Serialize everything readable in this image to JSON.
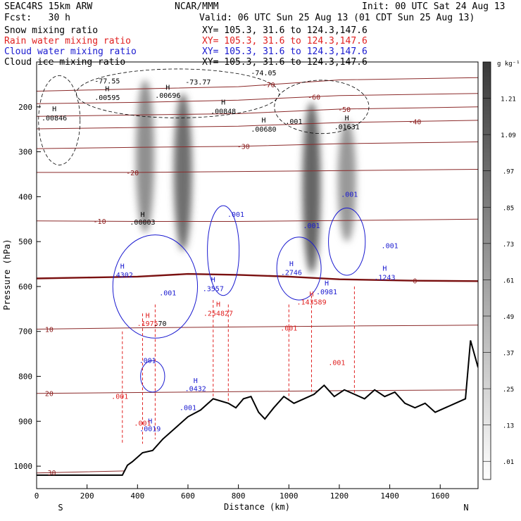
{
  "header": {
    "model": "SEAC4RS 15km ARW",
    "org": "NCAR/MMM",
    "init": "Init: 00 UTC Sat 24 Aug 13",
    "fcst": "Fcst:   30 h",
    "valid": "Valid: 06 UTC Sun 25 Aug 13 (01 CDT Sun 25 Aug 13)"
  },
  "fields": [
    {
      "label": "Snow mixing ratio",
      "xy": "XY= 105.3, 31.6 to 124.3,147.6",
      "color": "#000000"
    },
    {
      "label": "Rain water mixing ratio",
      "xy": "XY= 105.3, 31.6 to 124.3,147.6",
      "color": "#e02020"
    },
    {
      "label": "Cloud water mixing ratio",
      "xy": "XY= 105.3, 31.6 to 124.3,147.6",
      "color": "#1a1ad0"
    },
    {
      "label": "Cloud ice mixing ratio",
      "xy": "XY= 105.3, 31.6 to 124.3,147.6",
      "color": "#000000"
    }
  ],
  "chart_data": {
    "type": "heatmap",
    "title": "",
    "xlabel": "Distance (km)",
    "ylabel": "Pressure (hPa)",
    "xlim": [
      0,
      1750
    ],
    "ylim": [
      1050,
      100
    ],
    "x_ticks": [
      0,
      200,
      400,
      600,
      800,
      1000,
      1200,
      1400,
      1600
    ],
    "y_ticks": [
      200,
      300,
      400,
      500,
      600,
      700,
      800,
      900,
      1000
    ],
    "x_end_labels": {
      "left": "S",
      "right": "N"
    },
    "colorbar": {
      "unit": "g kg⁻¹",
      "ticks": [
        ".01",
        ".13",
        ".25",
        ".37",
        ".49",
        ".61",
        ".73",
        ".85",
        ".97",
        "1.09",
        "1.21"
      ]
    },
    "snow_cores": [
      {
        "x": 430,
        "p_top": 140,
        "p_bottom": 480,
        "intensity": 0.65
      },
      {
        "x": 580,
        "p_top": 170,
        "p_bottom": 520,
        "intensity": 0.85
      },
      {
        "x": 1090,
        "p_top": 190,
        "p_bottom": 570,
        "intensity": 0.9
      },
      {
        "x": 1230,
        "p_top": 230,
        "p_bottom": 500,
        "intensity": 0.6
      }
    ],
    "isotherms": [
      {
        "value": -70,
        "label": "-70",
        "label_x": 920,
        "p": [
          [
            0,
            165
          ],
          [
            400,
            160
          ],
          [
            800,
            155
          ],
          [
            1200,
            140
          ],
          [
            1750,
            135
          ]
        ]
      },
      {
        "value": -60,
        "label": "-60",
        "label_x": 1100,
        "p": [
          [
            0,
            193
          ],
          [
            400,
            190
          ],
          [
            800,
            185
          ],
          [
            1200,
            175
          ],
          [
            1750,
            170
          ]
        ]
      },
      {
        "value": -50,
        "label": "-50",
        "label_x": 1220,
        "p": [
          [
            0,
            221
          ],
          [
            400,
            218
          ],
          [
            800,
            215
          ],
          [
            1200,
            205
          ],
          [
            1750,
            200
          ]
        ]
      },
      {
        "value": -40,
        "label": "-40",
        "label_x": 1500,
        "p": [
          [
            0,
            249
          ],
          [
            400,
            246
          ],
          [
            800,
            243
          ],
          [
            1200,
            235
          ],
          [
            1750,
            230
          ]
        ]
      },
      {
        "value": -30,
        "label": "-30",
        "label_x": 820,
        "p": [
          [
            0,
            293
          ],
          [
            400,
            290
          ],
          [
            800,
            288
          ],
          [
            1200,
            282
          ],
          [
            1750,
            278
          ]
        ]
      },
      {
        "value": -20,
        "label": "-20",
        "label_x": 380,
        "p": [
          [
            0,
            346
          ],
          [
            400,
            346
          ],
          [
            800,
            344
          ],
          [
            1200,
            342
          ],
          [
            1750,
            339
          ]
        ]
      },
      {
        "value": -10,
        "label": "-10",
        "label_x": 250,
        "p": [
          [
            0,
            454
          ],
          [
            400,
            455
          ],
          [
            800,
            455
          ],
          [
            1200,
            453
          ],
          [
            1750,
            450
          ]
        ]
      },
      {
        "value": 0,
        "label": "0",
        "label_x": 1500,
        "p": [
          [
            0,
            582
          ],
          [
            200,
            580
          ],
          [
            400,
            578
          ],
          [
            600,
            572
          ],
          [
            800,
            574
          ],
          [
            1000,
            578
          ],
          [
            1200,
            584
          ],
          [
            1500,
            587
          ],
          [
            1750,
            588
          ]
        ]
      },
      {
        "value": 10,
        "label": "10",
        "label_x": 50,
        "p": [
          [
            0,
            695
          ],
          [
            400,
            692
          ],
          [
            800,
            690
          ],
          [
            1200,
            688
          ],
          [
            1750,
            686
          ]
        ]
      },
      {
        "value": 20,
        "label": "20",
        "label_x": 50,
        "p": [
          [
            0,
            838
          ],
          [
            400,
            836
          ],
          [
            800,
            834
          ],
          [
            1200,
            832
          ],
          [
            1750,
            830
          ]
        ]
      },
      {
        "value": 30,
        "label": "30",
        "label_x": 60,
        "p": [
          [
            0,
            1015
          ],
          [
            400,
            1010
          ],
          [
            800,
            1000
          ],
          [
            1200,
            990
          ],
          [
            1750,
            980
          ]
        ]
      }
    ],
    "terrain": [
      [
        0,
        1020
      ],
      [
        300,
        1020
      ],
      [
        340,
        1020
      ],
      [
        360,
        998
      ],
      [
        380,
        990
      ],
      [
        420,
        970
      ],
      [
        460,
        965
      ],
      [
        500,
        940
      ],
      [
        560,
        910
      ],
      [
        600,
        890
      ],
      [
        650,
        875
      ],
      [
        700,
        850
      ],
      [
        760,
        860
      ],
      [
        790,
        870
      ],
      [
        820,
        850
      ],
      [
        850,
        845
      ],
      [
        880,
        880
      ],
      [
        905,
        895
      ],
      [
        940,
        870
      ],
      [
        980,
        845
      ],
      [
        1020,
        860
      ],
      [
        1060,
        850
      ],
      [
        1100,
        840
      ],
      [
        1140,
        820
      ],
      [
        1180,
        845
      ],
      [
        1220,
        830
      ],
      [
        1260,
        840
      ],
      [
        1300,
        850
      ],
      [
        1340,
        830
      ],
      [
        1380,
        845
      ],
      [
        1420,
        835
      ],
      [
        1460,
        860
      ],
      [
        1500,
        870
      ],
      [
        1540,
        860
      ],
      [
        1580,
        880
      ],
      [
        1620,
        870
      ],
      [
        1660,
        860
      ],
      [
        1700,
        850
      ],
      [
        1720,
        720
      ],
      [
        1740,
        760
      ],
      [
        1750,
        780
      ]
    ],
    "snow_labels": [
      {
        "text": "-77.55",
        "x": 280,
        "p": 148,
        "color": "#000000"
      },
      {
        "text": "-73.77",
        "x": 640,
        "p": 150,
        "color": "#000000"
      },
      {
        "text": "-74.05",
        "x": 900,
        "p": 130,
        "color": "#000000"
      },
      {
        "text": "H",
        "x": 280,
        "p": 165,
        "color": "#000000"
      },
      {
        "text": ".00595",
        "x": 280,
        "p": 185,
        "color": "#000000"
      },
      {
        "text": "H",
        "x": 520,
        "p": 162,
        "color": "#000000"
      },
      {
        "text": ".00696",
        "x": 520,
        "p": 180,
        "color": "#000000"
      },
      {
        "text": "H",
        "x": 740,
        "p": 195,
        "color": "#000000"
      },
      {
        "text": ".00848",
        "x": 740,
        "p": 215,
        "color": "#000000"
      },
      {
        "text": "H",
        "x": 70,
        "p": 210,
        "color": "#000000"
      },
      {
        "text": ".00846",
        "x": 70,
        "p": 230,
        "color": "#000000"
      },
      {
        "text": "H",
        "x": 900,
        "p": 235,
        "color": "#000000"
      },
      {
        "text": ".00680",
        "x": 900,
        "p": 255,
        "color": "#000000"
      },
      {
        "text": ".001",
        "x": 1020,
        "p": 238,
        "color": "#000000"
      },
      {
        "text": "H",
        "x": 1230,
        "p": 230,
        "color": "#000000"
      },
      {
        "text": ".01631",
        "x": 1230,
        "p": 250,
        "color": "#000000"
      },
      {
        "text": "H",
        "x": 420,
        "p": 445,
        "color": "#000000"
      },
      {
        "text": ".00003",
        "x": 420,
        "p": 462,
        "color": "#000000"
      }
    ],
    "cloud_water_labels": [
      {
        "text": ".001",
        "x": 790,
        "p": 445,
        "color": "#1a1ad0"
      },
      {
        "text": ".001",
        "x": 1090,
        "p": 470,
        "color": "#1a1ad0"
      },
      {
        "text": ".001",
        "x": 1240,
        "p": 400,
        "color": "#1a1ad0"
      },
      {
        "text": ".001",
        "x": 1400,
        "p": 515,
        "color": "#1a1ad0"
      },
      {
        "text": "H",
        "x": 1380,
        "p": 565,
        "color": "#1a1ad0"
      },
      {
        "text": ".1243",
        "x": 1380,
        "p": 585,
        "color": "#1a1ad0"
      },
      {
        "text": "H",
        "x": 340,
        "p": 560,
        "color": "#1a1ad0"
      },
      {
        "text": ".4302",
        "x": 340,
        "p": 580,
        "color": "#1a1ad0"
      },
      {
        "text": "H",
        "x": 1010,
        "p": 555,
        "color": "#1a1ad0"
      },
      {
        "text": ".2746",
        "x": 1010,
        "p": 574,
        "color": "#1a1ad0"
      },
      {
        "text": "H",
        "x": 1150,
        "p": 598,
        "color": "#1a1ad0"
      },
      {
        "text": ".0981",
        "x": 1150,
        "p": 617,
        "color": "#1a1ad0"
      },
      {
        "text": "H",
        "x": 700,
        "p": 590,
        "color": "#1a1ad0"
      },
      {
        "text": ".3557",
        "x": 700,
        "p": 610,
        "color": "#1a1ad0"
      },
      {
        "text": ".001",
        "x": 520,
        "p": 620,
        "color": "#1a1ad0"
      },
      {
        "text": ".001",
        "x": 440,
        "p": 770,
        "color": "#1a1ad0"
      },
      {
        "text": "H",
        "x": 630,
        "p": 815,
        "color": "#1a1ad0"
      },
      {
        "text": ".0432",
        "x": 630,
        "p": 833,
        "color": "#1a1ad0"
      },
      {
        "text": ".001",
        "x": 600,
        "p": 875,
        "color": "#1a1ad0"
      },
      {
        "text": "H",
        "x": 450,
        "p": 905,
        "color": "#1a1ad0"
      },
      {
        "text": ".0019",
        "x": 450,
        "p": 922,
        "color": "#1a1ad0"
      }
    ],
    "rain_labels": [
      {
        "text": "H",
        "x": 1090,
        "p": 622,
        "color": "#e02020"
      },
      {
        "text": ".143589",
        "x": 1090,
        "p": 640,
        "color": "#e02020"
      },
      {
        "text": "H",
        "x": 720,
        "p": 645,
        "color": "#e02020"
      },
      {
        "text": ".254827",
        "x": 720,
        "p": 665,
        "color": "#e02020"
      },
      {
        "text": "H",
        "x": 440,
        "p": 670,
        "color": "#e02020"
      },
      {
        "text": ".1975",
        "x": 440,
        "p": 688,
        "color": "#e02020"
      },
      {
        "text": ".001",
        "x": 1000,
        "p": 698,
        "color": "#e02020"
      },
      {
        "text": ".001",
        "x": 1190,
        "p": 775,
        "color": "#e02020"
      },
      {
        "text": ".001",
        "x": 330,
        "p": 850,
        "color": "#e02020"
      },
      {
        "text": ".001",
        "x": 420,
        "p": 910,
        "color": "#e02020"
      },
      {
        "text": ".70",
        "x": 490,
        "p": 688,
        "color": "#000000"
      }
    ]
  }
}
